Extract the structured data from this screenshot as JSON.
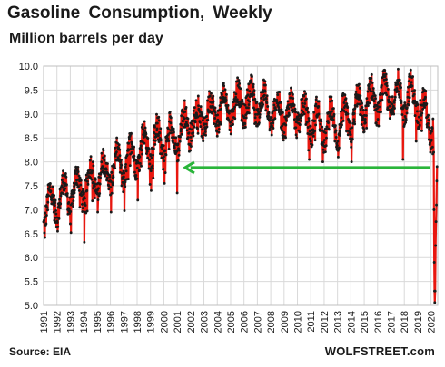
{
  "chart_data": {
    "type": "line",
    "title": "Gasoline Consumption, Weekly",
    "subtitle": "Million barrels per day",
    "ylim": [
      5.0,
      10.0
    ],
    "y_ticks": [
      "5.0",
      "5.5",
      "6.0",
      "6.5",
      "7.0",
      "7.5",
      "8.0",
      "8.5",
      "9.0",
      "9.5",
      "10.0"
    ],
    "x_range": [
      1991.0,
      2020.5
    ],
    "x_ticks": [
      "1991",
      "1992",
      "1993",
      "1994",
      "1995",
      "1996",
      "1997",
      "1998",
      "1999",
      "2000",
      "2001",
      "2002",
      "2003",
      "2004",
      "2005",
      "2006",
      "2007",
      "2008",
      "2009",
      "2010",
      "2011",
      "2012",
      "2013",
      "2014",
      "2015",
      "2016",
      "2017",
      "2018",
      "2019",
      "2020"
    ],
    "grid": true,
    "series_color": "#e8170f",
    "marker_color": "#1a1a1a",
    "annual_level": [
      {
        "year": 1991,
        "mid": 7.0,
        "amp": 0.45
      },
      {
        "year": 1992,
        "mid": 7.2,
        "amp": 0.45
      },
      {
        "year": 1993,
        "mid": 7.35,
        "amp": 0.45
      },
      {
        "year": 1994,
        "mid": 7.5,
        "amp": 0.45
      },
      {
        "year": 1995,
        "mid": 7.7,
        "amp": 0.45
      },
      {
        "year": 1996,
        "mid": 7.85,
        "amp": 0.45
      },
      {
        "year": 1997,
        "mid": 7.95,
        "amp": 0.45
      },
      {
        "year": 1998,
        "mid": 8.2,
        "amp": 0.45
      },
      {
        "year": 1999,
        "mid": 8.4,
        "amp": 0.45
      },
      {
        "year": 2000,
        "mid": 8.45,
        "amp": 0.45
      },
      {
        "year": 2001,
        "mid": 8.55,
        "amp": 0.45
      },
      {
        "year": 2002,
        "mid": 8.85,
        "amp": 0.4
      },
      {
        "year": 2003,
        "mid": 8.95,
        "amp": 0.4
      },
      {
        "year": 2004,
        "mid": 9.1,
        "amp": 0.4
      },
      {
        "year": 2005,
        "mid": 9.15,
        "amp": 0.4
      },
      {
        "year": 2006,
        "mid": 9.25,
        "amp": 0.4
      },
      {
        "year": 2007,
        "mid": 9.3,
        "amp": 0.4
      },
      {
        "year": 2008,
        "mid": 9.05,
        "amp": 0.4
      },
      {
        "year": 2009,
        "mid": 9.0,
        "amp": 0.4
      },
      {
        "year": 2010,
        "mid": 9.05,
        "amp": 0.4
      },
      {
        "year": 2011,
        "mid": 8.85,
        "amp": 0.45
      },
      {
        "year": 2012,
        "mid": 8.75,
        "amp": 0.5
      },
      {
        "year": 2013,
        "mid": 8.8,
        "amp": 0.5
      },
      {
        "year": 2014,
        "mid": 8.9,
        "amp": 0.5
      },
      {
        "year": 2015,
        "mid": 9.2,
        "amp": 0.45
      },
      {
        "year": 2016,
        "mid": 9.3,
        "amp": 0.45
      },
      {
        "year": 2017,
        "mid": 9.35,
        "amp": 0.45
      },
      {
        "year": 2018,
        "mid": 9.35,
        "amp": 0.45
      },
      {
        "year": 2019,
        "mid": 9.3,
        "amp": 0.45
      },
      {
        "year": 2020,
        "mid": 8.7,
        "amp": 0.35
      }
    ],
    "spikes": [
      {
        "x": 1991.1,
        "y": 6.42
      },
      {
        "x": 1992.05,
        "y": 6.55
      },
      {
        "x": 1993.05,
        "y": 6.52
      },
      {
        "x": 1994.05,
        "y": 6.32
      },
      {
        "x": 1995.05,
        "y": 6.95
      },
      {
        "x": 1996.05,
        "y": 6.95
      },
      {
        "x": 1997.05,
        "y": 6.98
      },
      {
        "x": 1998.05,
        "y": 7.2
      },
      {
        "x": 1999.05,
        "y": 7.4
      },
      {
        "x": 2000.05,
        "y": 7.55
      },
      {
        "x": 2001.0,
        "y": 7.35
      },
      {
        "x": 2011.9,
        "y": 8.0
      },
      {
        "x": 2013.05,
        "y": 8.1
      },
      {
        "x": 2014.05,
        "y": 8.0
      },
      {
        "x": 2017.9,
        "y": 8.05
      },
      {
        "x": 2019.95,
        "y": 8.2
      }
    ],
    "covid_drop": [
      {
        "x": 2020.15,
        "y": 8.9
      },
      {
        "x": 2020.2,
        "y": 8.2
      },
      {
        "x": 2020.22,
        "y": 7.0
      },
      {
        "x": 2020.24,
        "y": 5.9
      },
      {
        "x": 2020.26,
        "y": 5.3
      },
      {
        "x": 2020.28,
        "y": 5.06
      },
      {
        "x": 2020.31,
        "y": 5.3
      },
      {
        "x": 2020.34,
        "y": 6.25
      },
      {
        "x": 2020.37,
        "y": 6.75
      },
      {
        "x": 2020.4,
        "y": 7.1
      },
      {
        "x": 2020.43,
        "y": 7.6
      },
      {
        "x": 2020.45,
        "y": 7.9
      }
    ],
    "annotation_arrow": {
      "from": {
        "x": 2019.95,
        "y": 7.88
      },
      "to": {
        "x": 2001.6,
        "y": 7.88
      },
      "color": "#2ab53a"
    }
  },
  "footer": {
    "source": "Source: EIA",
    "watermark": "WOLFSTREET.com"
  }
}
